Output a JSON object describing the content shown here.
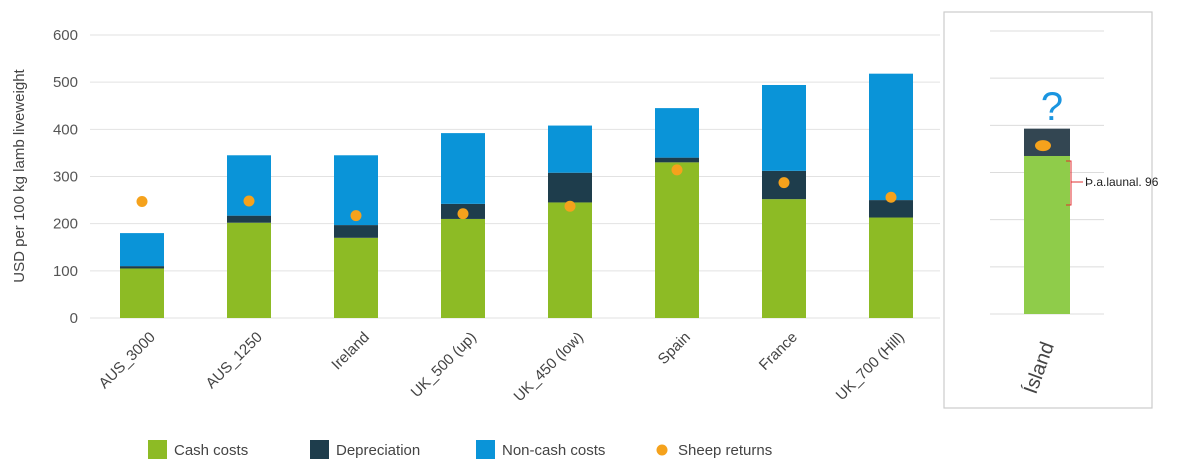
{
  "chart_data": {
    "type": "bar",
    "stacked": true,
    "title": "",
    "xlabel": "",
    "ylabel": "USD per 100 kg lamb liveweight",
    "ylim": [
      0,
      600
    ],
    "yticks": [
      0,
      100,
      200,
      300,
      400,
      500,
      600
    ],
    "grid": true,
    "legend_position": "bottom",
    "categories": [
      "AUS_3000",
      "AUS_1250",
      "Ireland",
      "UK_500 (up)",
      "UK_450 (low)",
      "Spain",
      "France",
      "UK_700 (Hill)"
    ],
    "series": [
      {
        "name": "Cash costs",
        "color": "#8dbb25",
        "values": [
          105,
          202,
          170,
          210,
          245,
          330,
          252,
          213
        ]
      },
      {
        "name": "Depreciation",
        "color": "#1e3d4c",
        "values": [
          5,
          15,
          27,
          32,
          63,
          10,
          60,
          37
        ]
      },
      {
        "name": "Non-cash costs",
        "color": "#0a94d8",
        "values": [
          70,
          128,
          148,
          150,
          100,
          105,
          182,
          268
        ]
      }
    ],
    "points": {
      "name": "Sheep returns",
      "color": "#f5a21c",
      "values": [
        247,
        248,
        217,
        221,
        237,
        314,
        287,
        256
      ]
    },
    "inset": {
      "category": "Ísland",
      "cash_costs": 335,
      "depreciation": 58,
      "sheep_returns": 357,
      "cash_color": "#8fcc4a",
      "depreciation_color": "#334652",
      "question_mark": "?",
      "question_color": "#1a95e0",
      "annotation": "Þ.a.launal. 96",
      "annotation_color": "#e03030"
    }
  }
}
